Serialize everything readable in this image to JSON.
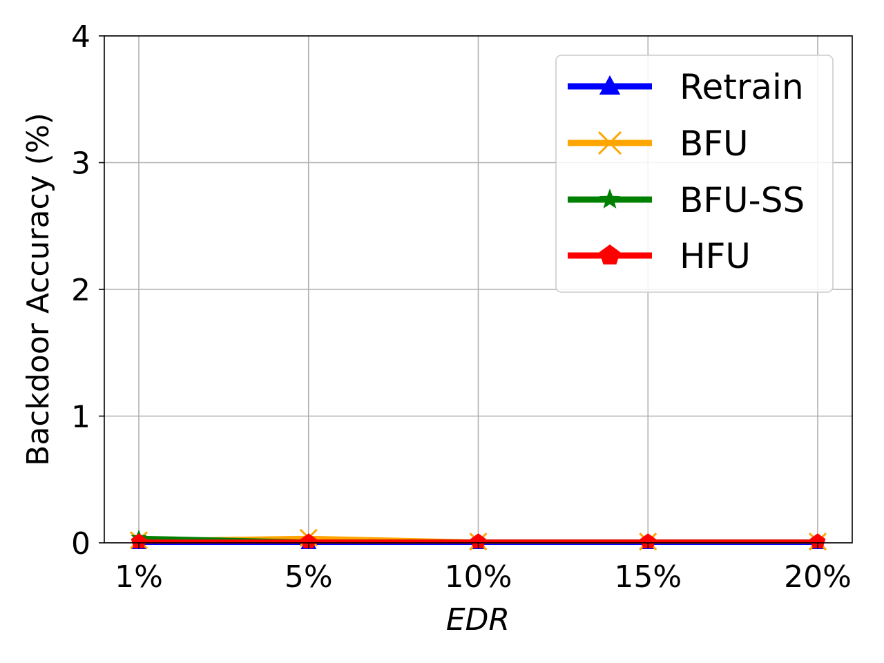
{
  "chart_data": {
    "type": "line",
    "xlabel": "EDR",
    "ylabel": "Backdoor Accuracy (%)",
    "categories": [
      "1%",
      "5%",
      "10%",
      "15%",
      "20%"
    ],
    "y_ticks": [
      "0",
      "1",
      "2",
      "3",
      "4"
    ],
    "ylim": [
      0,
      4
    ],
    "grid": true,
    "legend_position": "top-right",
    "series": [
      {
        "name": "Retrain",
        "color": "#0000ff",
        "marker": "triangle",
        "values": [
          0.0,
          0.0,
          0.0,
          0.0,
          0.0
        ]
      },
      {
        "name": "BFU",
        "color": "#ffa500",
        "marker": "x",
        "values": [
          0.02,
          0.04,
          0.01,
          0.01,
          0.01
        ]
      },
      {
        "name": "BFU-SS",
        "color": "#008000",
        "marker": "star",
        "values": [
          0.04,
          0.01,
          0.01,
          0.01,
          0.01
        ]
      },
      {
        "name": "HFU",
        "color": "#ff0000",
        "marker": "pentagon",
        "values": [
          0.01,
          0.01,
          0.01,
          0.01,
          0.01
        ]
      }
    ]
  }
}
